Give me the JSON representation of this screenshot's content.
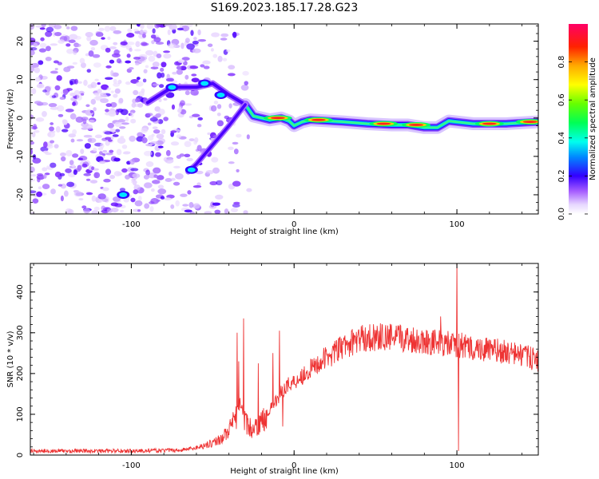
{
  "title": "S169.2023.185.17.28.G23",
  "colors": {
    "snr_line": "#ee3333",
    "axis": "#000000"
  },
  "chart_data": [
    {
      "type": "heatmap",
      "xlabel": "Height of straight line (km)",
      "ylabel": "Frequency (Hz)",
      "xlim": [
        -162,
        150
      ],
      "ylim": [
        -25,
        24.5
      ],
      "xticks": [
        -100,
        0,
        100
      ],
      "yticks": [
        -20,
        -10,
        0,
        10,
        20
      ],
      "colorbar": {
        "label": "Normalized spectral amplitude",
        "range": [
          0,
          1
        ],
        "ticks": [
          0.0,
          0.2,
          0.4,
          0.6,
          0.8
        ]
      },
      "ridge": [
        [
          -30,
          3.5
        ],
        [
          -25,
          0.5
        ],
        [
          -15,
          -0.5
        ],
        [
          -8,
          0
        ],
        [
          -3,
          -0.8
        ],
        [
          0,
          -2
        ],
        [
          5,
          -1
        ],
        [
          10,
          -0.5
        ],
        [
          30,
          -1
        ],
        [
          45,
          -1.5
        ],
        [
          60,
          -1.8
        ],
        [
          70,
          -1.8
        ],
        [
          80,
          -2.5
        ],
        [
          88,
          -2.5
        ],
        [
          95,
          -0.8
        ],
        [
          110,
          -1.5
        ],
        [
          130,
          -1.5
        ],
        [
          150,
          -1
        ]
      ],
      "ridge_peaks": [
        [
          -10,
          0
        ],
        [
          15,
          -0.5
        ],
        [
          55,
          -1.5
        ],
        [
          75,
          -1.8
        ],
        [
          120,
          -1.5
        ],
        [
          145,
          -1
        ]
      ],
      "branch_upper": [
        [
          -30,
          3.5
        ],
        [
          -40,
          6
        ],
        [
          -50,
          9
        ],
        [
          -60,
          8
        ],
        [
          -75,
          8
        ],
        [
          -90,
          4
        ]
      ],
      "branch_lower": [
        [
          -30,
          3.5
        ],
        [
          -40,
          -2
        ],
        [
          -50,
          -7
        ],
        [
          -60,
          -12
        ],
        [
          -65,
          -14
        ]
      ],
      "isolated_blobs": [
        [
          -105,
          -20
        ],
        [
          -75,
          8
        ],
        [
          -55,
          9
        ],
        [
          -45,
          6
        ],
        [
          -63,
          -13.5
        ]
      ]
    },
    {
      "type": "line",
      "xlabel": "Height of straight line (km)",
      "ylabel": "SNR (10 * v/v)",
      "xlim": [
        -162,
        150
      ],
      "ylim": [
        0,
        470
      ],
      "xticks": [
        -100,
        0,
        100
      ],
      "yticks": [
        0,
        100,
        200,
        300,
        400
      ],
      "series": [
        {
          "baseline": [
            [
              -162,
              10
            ],
            [
              -100,
              10
            ],
            [
              -70,
              12
            ],
            [
              -60,
              18
            ],
            [
              -50,
              30
            ],
            [
              -45,
              40
            ],
            [
              -40,
              60
            ],
            [
              -36,
              90
            ],
            [
              -33,
              130
            ],
            [
              -30,
              80
            ],
            [
              -25,
              60
            ],
            [
              -20,
              80
            ],
            [
              -15,
              110
            ],
            [
              -10,
              140
            ],
            [
              -5,
              170
            ],
            [
              0,
              180
            ],
            [
              10,
              210
            ],
            [
              20,
              240
            ],
            [
              30,
              265
            ],
            [
              40,
              285
            ],
            [
              50,
              290
            ],
            [
              60,
              288
            ],
            [
              70,
              285
            ],
            [
              80,
              280
            ],
            [
              90,
              275
            ],
            [
              100,
              268
            ],
            [
              110,
              262
            ],
            [
              120,
              258
            ],
            [
              130,
              252
            ],
            [
              140,
              245
            ],
            [
              150,
              232
            ]
          ],
          "spikes": [
            [
              -35,
              300
            ],
            [
              -34,
              230
            ],
            [
              -31,
              335
            ],
            [
              -28,
              50
            ],
            [
              -22,
              225
            ],
            [
              -13,
              250
            ],
            [
              -9,
              305
            ],
            [
              -7,
              70
            ],
            [
              90,
              340
            ],
            [
              100,
              470
            ],
            [
              101,
              10
            ],
            [
              103,
              300
            ]
          ]
        }
      ]
    }
  ]
}
